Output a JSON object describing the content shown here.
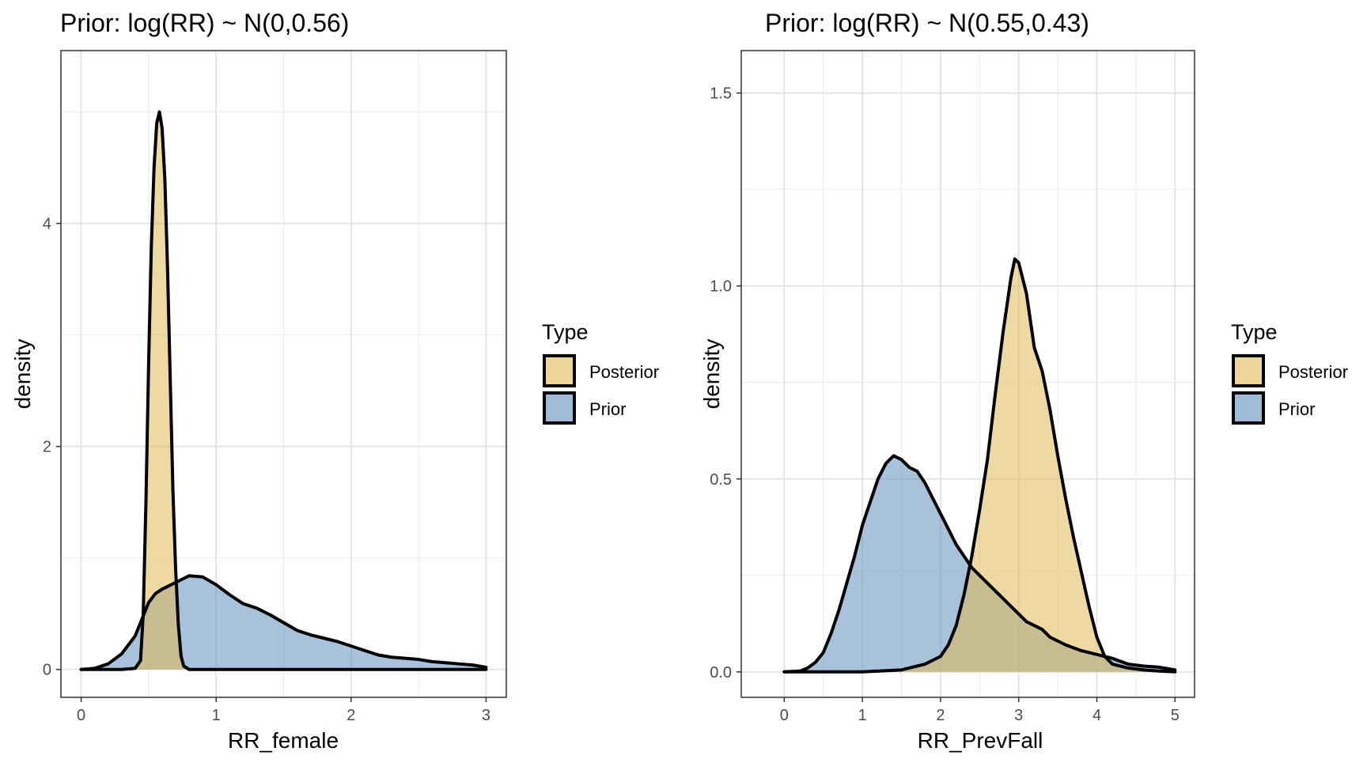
{
  "chart_data": [
    {
      "type": "area",
      "title": "Prior: log(RR) ~ N(0,0.56)",
      "xlabel": "RR_female",
      "ylabel": "density",
      "xlim": [
        -0.15,
        3.15
      ],
      "ylim": [
        -0.25,
        5.55
      ],
      "xticks": [
        0,
        1,
        2,
        3
      ],
      "xtick_labels": [
        "0",
        "1",
        "2",
        "3"
      ],
      "yticks": [
        0,
        2,
        4
      ],
      "ytick_labels": [
        "0",
        "2",
        "4"
      ],
      "grid": true,
      "legend": {
        "title": "Type",
        "position": "right",
        "entries": [
          "Posterior",
          "Prior"
        ]
      },
      "series": [
        {
          "name": "Posterior",
          "color": "#e2b955",
          "x": [
            0,
            0.3,
            0.4,
            0.44,
            0.46,
            0.48,
            0.5,
            0.52,
            0.54,
            0.56,
            0.58,
            0.6,
            0.62,
            0.64,
            0.66,
            0.68,
            0.7,
            0.72,
            0.74,
            0.76,
            0.8,
            0.9,
            1.2,
            2.0,
            3.0
          ],
          "y": [
            0,
            0,
            0.01,
            0.08,
            0.5,
            1.5,
            2.75,
            3.8,
            4.5,
            4.9,
            5.0,
            4.85,
            4.4,
            3.6,
            2.6,
            1.6,
            0.9,
            0.4,
            0.12,
            0.03,
            0,
            0,
            0,
            0,
            0
          ]
        },
        {
          "name": "Prior",
          "color": "#5f8fbb",
          "x": [
            0,
            0.1,
            0.2,
            0.3,
            0.4,
            0.45,
            0.5,
            0.55,
            0.6,
            0.7,
            0.8,
            0.9,
            1.0,
            1.1,
            1.2,
            1.3,
            1.4,
            1.5,
            1.6,
            1.7,
            1.8,
            1.9,
            2.0,
            2.1,
            2.2,
            2.3,
            2.4,
            2.5,
            2.6,
            2.7,
            2.8,
            2.9,
            3.0
          ],
          "y": [
            0,
            0.01,
            0.05,
            0.14,
            0.3,
            0.45,
            0.6,
            0.68,
            0.72,
            0.78,
            0.84,
            0.83,
            0.76,
            0.67,
            0.59,
            0.55,
            0.49,
            0.42,
            0.35,
            0.31,
            0.28,
            0.25,
            0.21,
            0.17,
            0.13,
            0.11,
            0.1,
            0.09,
            0.07,
            0.06,
            0.05,
            0.04,
            0.02
          ]
        }
      ]
    },
    {
      "type": "area",
      "title": "Prior: log(RR) ~ N(0.55,0.43)",
      "xlabel": "RR_PrevFall",
      "ylabel": "density",
      "xlim": [
        -0.55,
        5.25
      ],
      "ylim": [
        -0.066,
        1.61
      ],
      "xticks": [
        0,
        1,
        2,
        3,
        4,
        5
      ],
      "xtick_labels": [
        "0",
        "1",
        "2",
        "3",
        "4",
        "5"
      ],
      "yticks": [
        0,
        0.5,
        1.0,
        1.5
      ],
      "ytick_labels": [
        "0.0",
        "0.5",
        "1.0",
        "1.5"
      ],
      "grid": true,
      "legend": {
        "title": "Type",
        "position": "right",
        "entries": [
          "Posterior",
          "Prior"
        ]
      },
      "series": [
        {
          "name": "Posterior",
          "color": "#e2b955",
          "x": [
            0,
            1.0,
            1.5,
            1.8,
            2.0,
            2.1,
            2.2,
            2.3,
            2.4,
            2.5,
            2.6,
            2.7,
            2.8,
            2.9,
            2.95,
            3.0,
            3.1,
            3.2,
            3.3,
            3.4,
            3.5,
            3.6,
            3.7,
            3.8,
            3.9,
            4.0,
            4.1,
            4.2,
            4.4,
            4.6,
            4.8,
            5.0
          ],
          "y": [
            0,
            0,
            0.005,
            0.02,
            0.04,
            0.07,
            0.12,
            0.2,
            0.3,
            0.42,
            0.55,
            0.72,
            0.88,
            1.02,
            1.07,
            1.06,
            0.98,
            0.84,
            0.78,
            0.68,
            0.56,
            0.45,
            0.35,
            0.26,
            0.17,
            0.09,
            0.04,
            0.02,
            0.01,
            0.005,
            0.002,
            0
          ]
        },
        {
          "name": "Prior",
          "color": "#5f8fbb",
          "x": [
            0,
            0.2,
            0.3,
            0.4,
            0.5,
            0.6,
            0.7,
            0.8,
            0.9,
            1.0,
            1.1,
            1.2,
            1.3,
            1.4,
            1.5,
            1.6,
            1.7,
            1.8,
            1.9,
            2.0,
            2.1,
            2.2,
            2.3,
            2.4,
            2.5,
            2.6,
            2.7,
            2.8,
            2.9,
            3.0,
            3.1,
            3.2,
            3.3,
            3.4,
            3.5,
            3.6,
            3.8,
            4.0,
            4.2,
            4.4,
            4.6,
            4.8,
            5.0
          ],
          "y": [
            0,
            0.002,
            0.01,
            0.025,
            0.05,
            0.1,
            0.16,
            0.23,
            0.3,
            0.38,
            0.44,
            0.5,
            0.54,
            0.56,
            0.55,
            0.53,
            0.52,
            0.49,
            0.45,
            0.41,
            0.37,
            0.33,
            0.3,
            0.27,
            0.25,
            0.23,
            0.21,
            0.19,
            0.17,
            0.15,
            0.13,
            0.12,
            0.11,
            0.09,
            0.08,
            0.07,
            0.055,
            0.045,
            0.035,
            0.02,
            0.015,
            0.012,
            0.005
          ]
        }
      ]
    }
  ]
}
